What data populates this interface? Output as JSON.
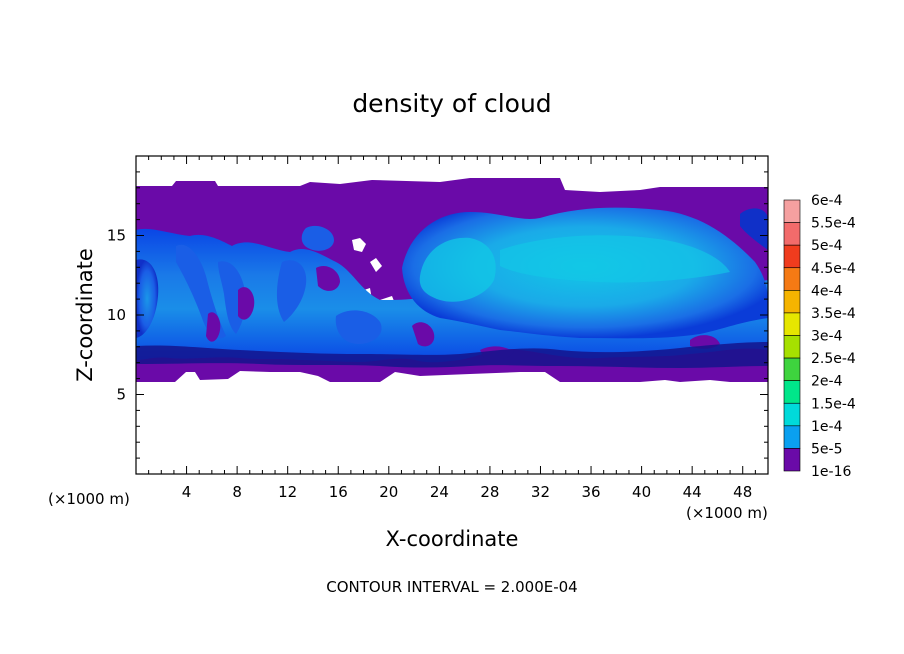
{
  "chart_data": {
    "type": "heatmap",
    "title": "density of cloud",
    "xlabel": "X-coordinate",
    "ylabel": "Z-coordinate",
    "x_unit_left": "(×1000 m)",
    "x_unit_right": "(×1000 m)",
    "footer": "CONTOUR INTERVAL = 2.000E-04",
    "xlim": [
      0,
      50
    ],
    "ylim": [
      0,
      20
    ],
    "x_ticks": [
      "4",
      "8",
      "12",
      "16",
      "20",
      "24",
      "28",
      "32",
      "36",
      "40",
      "44",
      "48"
    ],
    "y_ticks": [
      "5",
      "10",
      "15"
    ],
    "colorbar": {
      "levels": [
        {
          "label": "6e-4",
          "color": "#f5a0a0"
        },
        {
          "label": "5.5e-4",
          "color": "#f26b6b"
        },
        {
          "label": "5e-4",
          "color": "#f03c1e"
        },
        {
          "label": "4.5e-4",
          "color": "#f57a14"
        },
        {
          "label": "4e-4",
          "color": "#f5b400"
        },
        {
          "label": "3.5e-4",
          "color": "#e6e600"
        },
        {
          "label": "3e-4",
          "color": "#a6e000"
        },
        {
          "label": "2.5e-4",
          "color": "#3ed43e"
        },
        {
          "label": "2e-4",
          "color": "#00e68a"
        },
        {
          "label": "1.5e-4",
          "color": "#00dada"
        },
        {
          "label": "1e-4",
          "color": "#0aa0f0"
        },
        {
          "label": "5e-5",
          "color": "#0a46e6"
        },
        {
          "label": "1e-16",
          "color": "#14148c"
        }
      ],
      "bottom_color": "#6a0aa8"
    }
  }
}
